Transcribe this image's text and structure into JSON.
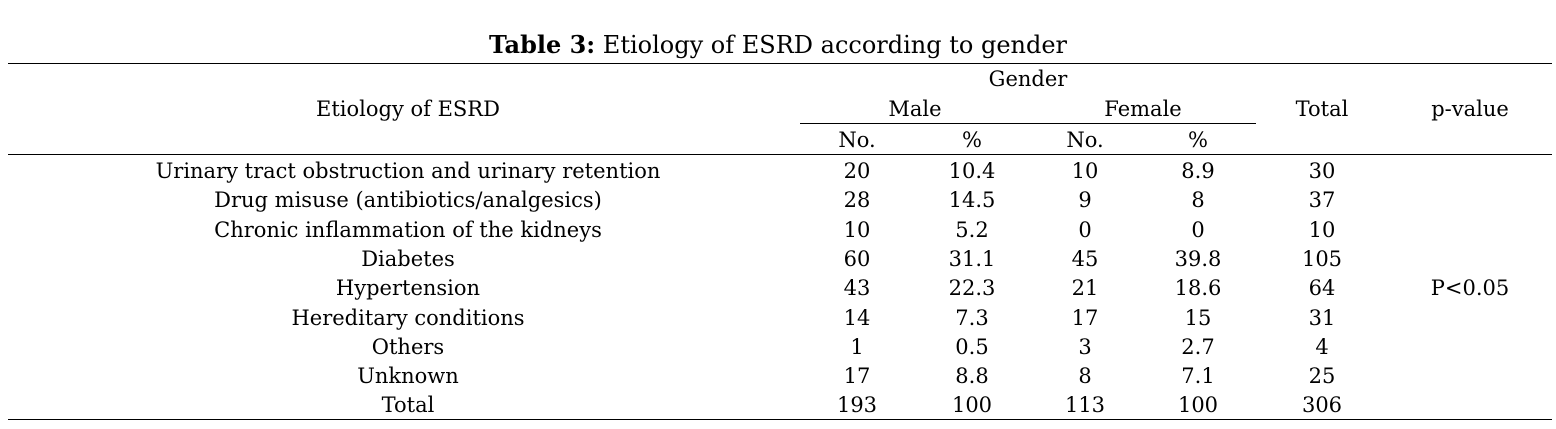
{
  "table": {
    "caption_label": "Table 3:",
    "caption_text": " Etiology of ESRD according to gender",
    "header": {
      "etiology": "Etiology of ESRD",
      "gender": "Gender",
      "male": "Male",
      "female": "Female",
      "total": "Total",
      "pvalue": "p-value",
      "no": "No.",
      "pct": "%"
    },
    "rows": [
      {
        "label": "Urinary tract obstruction and urinary retention",
        "male_no": "20",
        "male_pct": "10.4",
        "female_no": "10",
        "female_pct": "8.9",
        "total": "30"
      },
      {
        "label": "Drug misuse (antibiotics/analgesics)",
        "male_no": "28",
        "male_pct": "14.5",
        "female_no": "9",
        "female_pct": "8",
        "total": "37"
      },
      {
        "label": "Chronic inflammation of the kidneys",
        "male_no": "10",
        "male_pct": "5.2",
        "female_no": "0",
        "female_pct": "0",
        "total": "10"
      },
      {
        "label": "Diabetes",
        "male_no": "60",
        "male_pct": "31.1",
        "female_no": "45",
        "female_pct": "39.8",
        "total": "105"
      },
      {
        "label": "Hypertension",
        "male_no": "43",
        "male_pct": "22.3",
        "female_no": "21",
        "female_pct": "18.6",
        "total": "64"
      },
      {
        "label": "Hereditary conditions",
        "male_no": "14",
        "male_pct": "7.3",
        "female_no": "17",
        "female_pct": "15",
        "total": "31"
      },
      {
        "label": "Others",
        "male_no": "1",
        "male_pct": "0.5",
        "female_no": "3",
        "female_pct": "2.7",
        "total": "4"
      },
      {
        "label": "Unknown",
        "male_no": "17",
        "male_pct": "8.8",
        "female_no": "8",
        "female_pct": "7.1",
        "total": "25"
      },
      {
        "label": "Total",
        "male_no": "193",
        "male_pct": "100",
        "female_no": "113",
        "female_pct": "100",
        "total": "306"
      }
    ],
    "pvalue": "P<0.05"
  }
}
